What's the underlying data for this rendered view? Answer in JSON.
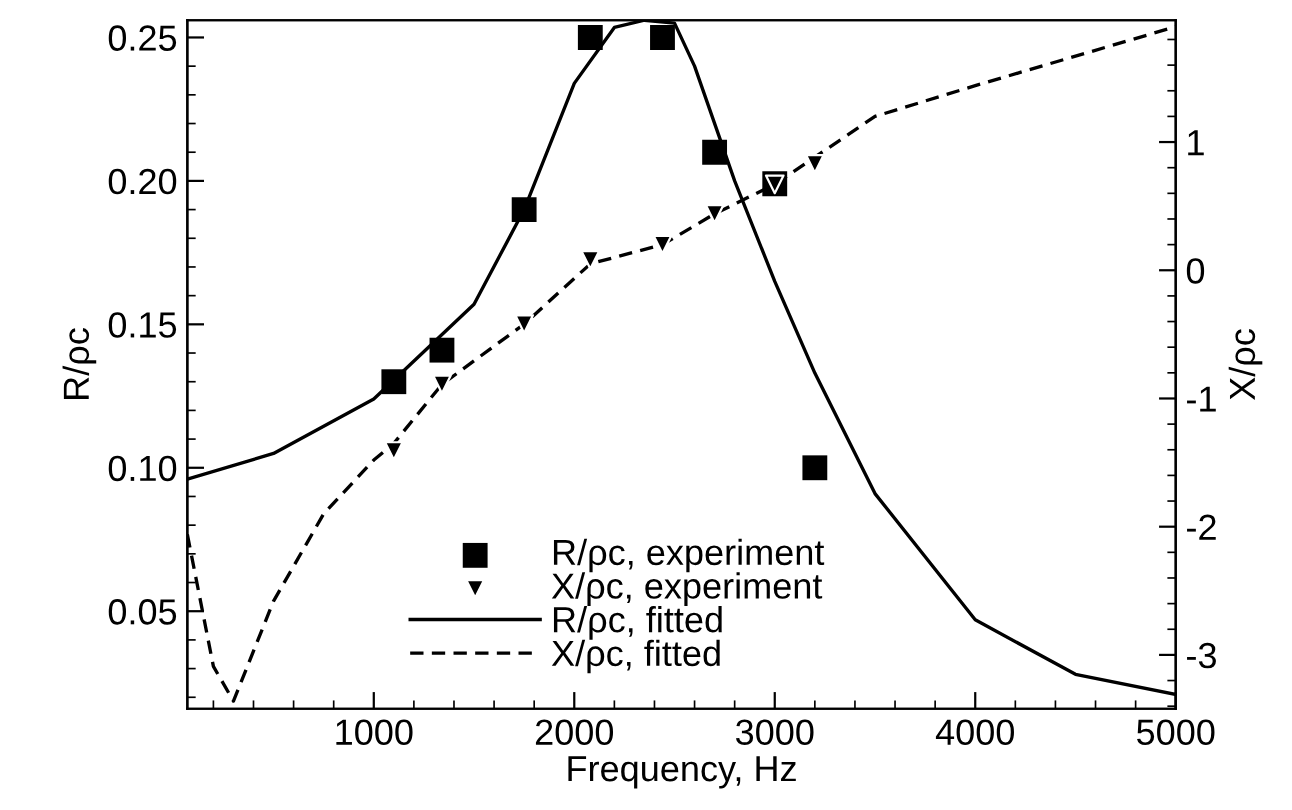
{
  "chart_data": {
    "type": "line",
    "xlabel": "Frequency, Hz",
    "ylabel": "R/ρc",
    "y2label": "X/ρc",
    "xlim": [
      70,
      5000
    ],
    "xticks": [
      1000,
      2000,
      3000,
      4000,
      5000
    ],
    "ylim": [
      0.016,
      0.256
    ],
    "yticks": [
      0.05,
      {
        "value": 0.1,
        "label": "0.10"
      },
      0.15,
      {
        "value": 0.2,
        "label": "0.20"
      },
      0.25
    ],
    "y2lim": [
      -3.42,
      1.95
    ],
    "y2ticks": [
      -3,
      -2,
      -1,
      0,
      1
    ],
    "grid": false,
    "legend": "bottom",
    "series": [
      {
        "name": "R/ρc, experiment",
        "type": "scatter",
        "marker": "square",
        "color": "#000000",
        "x": [
          1100,
          1340,
          1750,
          2080,
          2440,
          2700,
          3000,
          3200
        ],
        "values": [
          0.13,
          0.141,
          0.19,
          0.25,
          0.25,
          0.21,
          0.199,
          0.1
        ]
      },
      {
        "name": "X/ρc, experiment",
        "type": "scatter",
        "marker": "triangle",
        "color": "#000000",
        "axis": "y2",
        "x": [
          1100,
          1340,
          1750,
          2080,
          2440,
          2700,
          3000,
          3200
        ],
        "values": [
          -1.41,
          -0.89,
          -0.42,
          0.08,
          0.2,
          0.44,
          0.67,
          0.83
        ]
      },
      {
        "name": "R/ρc, fitted",
        "line_style": "solid",
        "color": "#000000",
        "x": [
          70,
          500,
          1000,
          1500,
          1750,
          2000,
          2200,
          2350,
          2500,
          2600,
          2800,
          3000,
          3200,
          3500,
          4000,
          4500,
          5000
        ],
        "values": [
          0.096,
          0.105,
          0.124,
          0.157,
          0.19,
          0.234,
          0.2535,
          0.256,
          0.255,
          0.24,
          0.2,
          0.165,
          0.133,
          0.091,
          0.047,
          0.028,
          0.021
        ]
      },
      {
        "name": "X/ρc, fitted",
        "line_style": "dashed",
        "color": "#000000",
        "axis": "y2",
        "x": [
          70,
          200,
          300,
          500,
          750,
          1000,
          1100,
          1340,
          1750,
          2080,
          2440,
          2700,
          3000,
          3500,
          4000,
          5000
        ],
        "values": [
          -2.06,
          -3.09,
          -3.36,
          -2.58,
          -1.9,
          -1.48,
          -1.35,
          -0.89,
          -0.42,
          0.05,
          0.2,
          0.44,
          0.67,
          1.2,
          1.44,
          1.9
        ]
      }
    ]
  }
}
